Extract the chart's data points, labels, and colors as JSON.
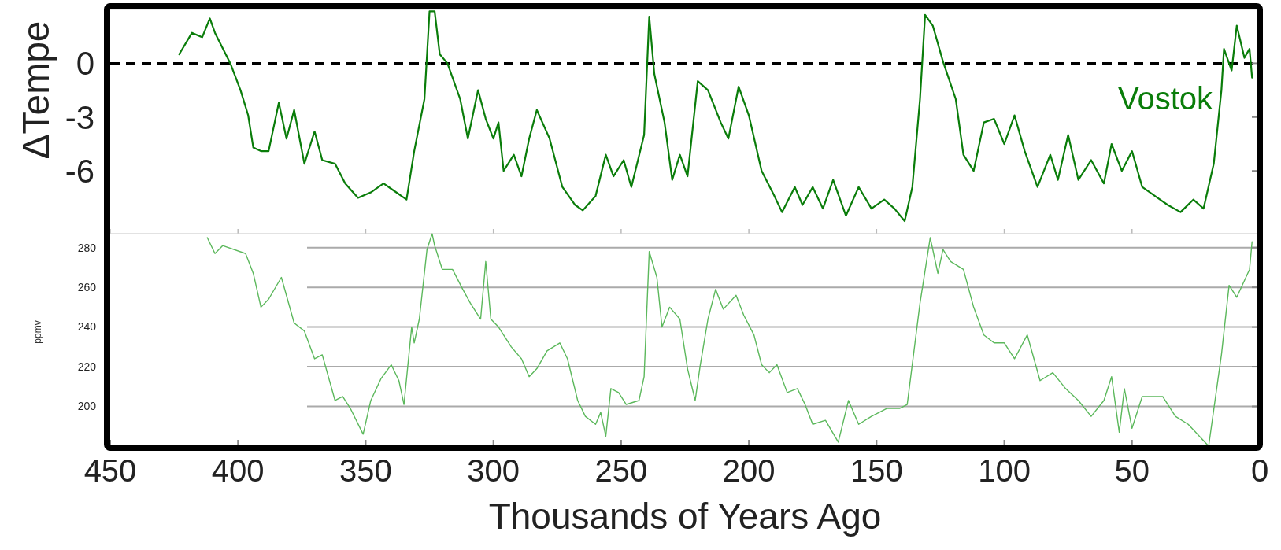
{
  "chart_data": [
    {
      "type": "line",
      "ylabel": "ΔTempe",
      "xlim": [
        450,
        0
      ],
      "xticks": [
        450,
        400,
        350,
        300,
        250,
        200,
        150,
        100,
        50,
        0
      ],
      "ylim": [
        -9.5,
        3
      ],
      "yticks": [
        -6,
        -3,
        0
      ],
      "tick_labels": "y",
      "ref_lines": [
        {
          "axis": "y",
          "value": 0,
          "color": "#000000",
          "line_style": "dashed"
        }
      ],
      "series": [
        {
          "name": "Vostok",
          "color": "#0a7d0a",
          "x": [
            423,
            418,
            414,
            411,
            409,
            403,
            399,
            396,
            394,
            391,
            388,
            384,
            381,
            378,
            374,
            370,
            367,
            362,
            358,
            353,
            348,
            343,
            340,
            336,
            334,
            331,
            327,
            325,
            323,
            321,
            318,
            313,
            310,
            306,
            303,
            300,
            298,
            296,
            292,
            289,
            286,
            283,
            278,
            273,
            268,
            265,
            260,
            256,
            253,
            249,
            246,
            241,
            239,
            237,
            233,
            230,
            227,
            224,
            220,
            216,
            211,
            208,
            204,
            200,
            195,
            190,
            187,
            182,
            179,
            175,
            171,
            167,
            162,
            157,
            152,
            147,
            143,
            139,
            136,
            133,
            131,
            128,
            124,
            119,
            116,
            112,
            108,
            104,
            100,
            96,
            92,
            87,
            82,
            79,
            75,
            71,
            66,
            61,
            58,
            54,
            50,
            46,
            41,
            36,
            31,
            26,
            22,
            18,
            15,
            14,
            11,
            9,
            6,
            4,
            3
          ],
          "values": [
            0.5,
            1.7,
            1.45,
            2.5,
            1.7,
            0,
            -1.5,
            -2.9,
            -4.7,
            -4.9,
            -4.9,
            -2.2,
            -4.2,
            -2.6,
            -5.6,
            -3.8,
            -5.4,
            -5.6,
            -6.7,
            -7.5,
            -7.2,
            -6.7,
            -7.0,
            -7.4,
            -7.6,
            -4.9,
            -2.0,
            2.9,
            2.9,
            0.5,
            0,
            -2.0,
            -4.2,
            -1.5,
            -3.1,
            -4.2,
            -3.3,
            -6.0,
            -5.1,
            -6.3,
            -4.2,
            -2.6,
            -4.2,
            -6.9,
            -7.9,
            -8.2,
            -7.4,
            -5.1,
            -6.3,
            -5.4,
            -6.9,
            -4.0,
            2.6,
            -0.6,
            -3.3,
            -6.5,
            -5.1,
            -6.3,
            -1.0,
            -1.5,
            -3.3,
            -4.2,
            -1.3,
            -2.9,
            -6.0,
            -7.4,
            -8.3,
            -6.9,
            -7.9,
            -6.9,
            -8.1,
            -6.5,
            -8.5,
            -6.9,
            -8.1,
            -7.6,
            -8.1,
            -8.8,
            -6.9,
            -2.0,
            2.7,
            2.1,
            0.1,
            -2.0,
            -5.1,
            -6.0,
            -3.3,
            -3.1,
            -4.5,
            -2.9,
            -4.9,
            -6.9,
            -5.1,
            -6.5,
            -4.0,
            -6.5,
            -5.4,
            -6.7,
            -4.5,
            -6.0,
            -4.9,
            -6.9,
            -7.4,
            -7.9,
            -8.3,
            -7.6,
            -8.1,
            -5.6,
            -1.5,
            0.8,
            -0.4,
            2.1,
            0.3,
            0.8,
            -0.8
          ]
        }
      ]
    },
    {
      "type": "line",
      "ylabel": "ppmv",
      "xlabel": "Thousands of Years Ago",
      "xlim": [
        450,
        0
      ],
      "xticks": [
        450,
        400,
        350,
        300,
        250,
        200,
        150,
        100,
        50,
        0
      ],
      "ylim": [
        180,
        287
      ],
      "yticks": [
        200,
        220,
        240,
        260,
        280
      ],
      "grid": "y",
      "series": [
        {
          "color": "#5cb85c",
          "x": [
            412,
            409,
            406,
            397,
            394,
            391,
            388,
            383,
            378,
            374,
            370,
            367,
            362,
            359,
            356,
            351,
            348,
            344,
            340,
            337,
            335,
            332,
            331,
            329,
            326,
            324,
            323,
            320,
            316,
            312,
            309,
            305,
            303,
            301,
            298,
            293,
            289,
            286,
            283,
            279,
            274,
            271,
            267,
            264,
            260,
            258,
            256,
            254,
            251,
            248,
            243,
            241,
            239,
            236,
            234,
            231,
            227,
            224,
            221,
            219,
            216,
            213,
            210,
            205,
            202,
            198,
            195,
            192,
            189,
            185,
            181,
            178,
            175,
            170,
            165,
            161,
            157,
            152,
            146,
            141,
            138,
            133,
            129,
            126,
            124,
            121,
            116,
            112,
            108,
            104,
            100,
            96,
            91,
            86,
            81,
            76,
            71,
            66,
            61,
            58,
            55,
            53,
            50,
            46,
            38,
            33,
            28,
            20,
            15,
            12,
            9,
            4,
            3
          ],
          "values": [
            285,
            277,
            281,
            277,
            267,
            250,
            254,
            265,
            242,
            238,
            224,
            226,
            203,
            205,
            199,
            186,
            203,
            214,
            221,
            213,
            201,
            240,
            232,
            244,
            279,
            287,
            281,
            269,
            269,
            259,
            252,
            244,
            273,
            244,
            240,
            230,
            224,
            215,
            219,
            228,
            232,
            224,
            203,
            195,
            191,
            197,
            185,
            209,
            207,
            201,
            203,
            215,
            278,
            265,
            240,
            250,
            244,
            219,
            203,
            221,
            244,
            259,
            249,
            256,
            246,
            236,
            221,
            217,
            221,
            207,
            209,
            201,
            191,
            193,
            182,
            203,
            191,
            195,
            199,
            199,
            201,
            252,
            285,
            267,
            279,
            273,
            269,
            250,
            236,
            232,
            232,
            224,
            236,
            213,
            217,
            209,
            203,
            195,
            203,
            215,
            187,
            209,
            189,
            205,
            205,
            195,
            191,
            180,
            226,
            261,
            255,
            269,
            283
          ]
        }
      ]
    }
  ]
}
